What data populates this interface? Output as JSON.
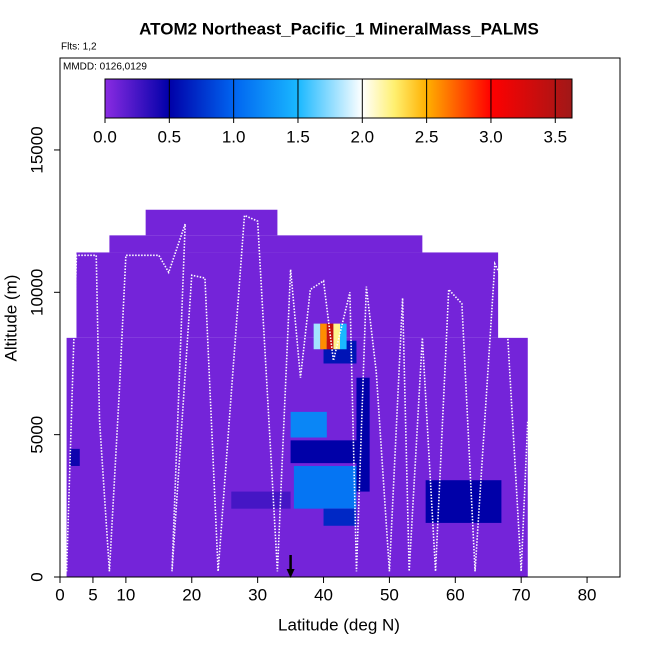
{
  "chart_data": {
    "type": "heatmap",
    "title": "ATOM2 Northeast_Pacific_1 MineralMass_PALMS",
    "flights_label": "Flts: 1,2",
    "dates_label": "MMDD: 0126,0129",
    "x_label": "Latitude (deg N)",
    "y_label": "Altitude (m)",
    "xlim": [
      0,
      85
    ],
    "xticks": [
      0,
      5,
      10,
      20,
      30,
      40,
      50,
      60,
      70,
      80
    ],
    "ylim": [
      0,
      18230
    ],
    "yticks": [
      0,
      5000,
      10000,
      15000
    ],
    "clim": [
      0,
      3.63
    ],
    "cticks": [
      {
        "value": 0,
        "label": "0.0"
      },
      {
        "value": 0.5,
        "label": "0.5"
      },
      {
        "value": 1,
        "label": "1.0"
      },
      {
        "value": 1.5,
        "label": "1.5"
      },
      {
        "value": 2,
        "label": "2.0"
      },
      {
        "value": 2.5,
        "label": "2.5"
      },
      {
        "value": 3,
        "label": "3.0"
      },
      {
        "value": 3.5,
        "label": "3.5"
      }
    ],
    "colorscale": [
      [
        0,
        "#8a2be2"
      ],
      [
        0.5,
        "#0000a8"
      ],
      [
        1,
        "#0064f0"
      ],
      [
        1.5,
        "#1ab8ff"
      ],
      [
        2,
        "#ffffff"
      ],
      [
        2.25,
        "#fff070"
      ],
      [
        2.5,
        "#ffb000"
      ],
      [
        3,
        "#ff0000"
      ],
      [
        3.63,
        "#a01818"
      ]
    ],
    "cells": [
      {
        "lat": [
          1,
          71
        ],
        "alt": [
          0,
          8400
        ],
        "value": 0.08
      },
      {
        "lat": [
          2.5,
          66.5
        ],
        "alt": [
          8400,
          11400
        ],
        "value": 0.08
      },
      {
        "lat": [
          7.5,
          55
        ],
        "alt": [
          11400,
          12000
        ],
        "value": 0.08
      },
      {
        "lat": [
          13,
          33
        ],
        "alt": [
          12000,
          12900
        ],
        "value": 0.08
      },
      {
        "lat": [
          26,
          35
        ],
        "alt": [
          2400,
          3000
        ],
        "value": 0.25
      },
      {
        "lat": [
          1.5,
          3
        ],
        "alt": [
          3900,
          4500
        ],
        "value": 0.45
      },
      {
        "lat": [
          35,
          45
        ],
        "alt": [
          4000,
          4800
        ],
        "value": 0.5
      },
      {
        "lat": [
          35.5,
          45
        ],
        "alt": [
          2400,
          3900
        ],
        "value": 1.1
      },
      {
        "lat": [
          40,
          45
        ],
        "alt": [
          1800,
          2400
        ],
        "value": 0.7
      },
      {
        "lat": [
          35,
          40.5
        ],
        "alt": [
          4900,
          5800
        ],
        "value": 1.2
      },
      {
        "lat": [
          45,
          47
        ],
        "alt": [
          3000,
          7000
        ],
        "value": 0.5
      },
      {
        "lat": [
          40,
          45
        ],
        "alt": [
          7500,
          8300
        ],
        "value": 0.6
      },
      {
        "lat": [
          38.5,
          39.5
        ],
        "alt": [
          8000,
          8900
        ],
        "value": 1.8
      },
      {
        "lat": [
          39.5,
          40.5
        ],
        "alt": [
          8000,
          8900
        ],
        "value": 2.6
      },
      {
        "lat": [
          40.5,
          41.5
        ],
        "alt": [
          8000,
          8900
        ],
        "value": 3.4
      },
      {
        "lat": [
          41.5,
          42.5
        ],
        "alt": [
          8000,
          8900
        ],
        "value": 2.2
      },
      {
        "lat": [
          42.5,
          43.5
        ],
        "alt": [
          8000,
          8900
        ],
        "value": 1.5
      },
      {
        "lat": [
          55.5,
          67
        ],
        "alt": [
          1900,
          3400
        ],
        "value": 0.5
      }
    ],
    "track": {
      "x": [
        1,
        2.5,
        5.5,
        6,
        7.5,
        9,
        10,
        15,
        16.5,
        19,
        17,
        20,
        22,
        24,
        28,
        30,
        33,
        35,
        36.5,
        38,
        40,
        41.5,
        44,
        45,
        46.5,
        48,
        50,
        52,
        53,
        55,
        57,
        59,
        61,
        63,
        66,
        67.5,
        70,
        71
      ],
      "y": [
        200,
        11300,
        11300,
        5500,
        200,
        6500,
        11300,
        11300,
        10700,
        12400,
        200,
        10600,
        10500,
        200,
        12700,
        12500,
        200,
        10800,
        7000,
        10100,
        10400,
        7600,
        10000,
        200,
        10200,
        7200,
        200,
        9800,
        200,
        8400,
        200,
        10100,
        9600,
        200,
        11000,
        10300,
        200,
        5500
      ]
    },
    "arrow_lat": 35
  }
}
